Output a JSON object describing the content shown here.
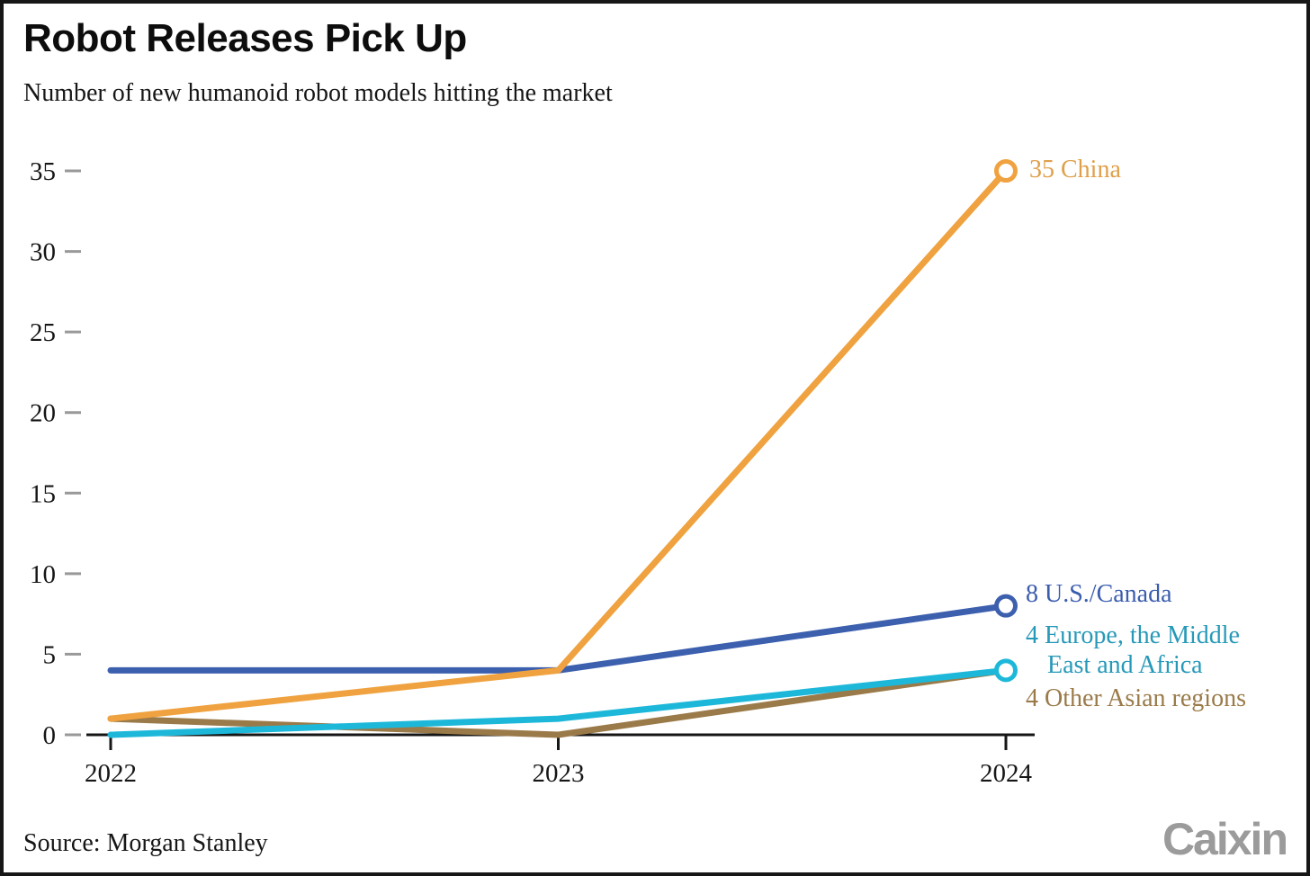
{
  "chart_data": {
    "type": "line",
    "title": "Robot Releases Pick Up",
    "subtitle": "Number of new humanoid robot models hitting the market",
    "source": "Source: Morgan Stanley",
    "logo": "Caixin",
    "x": [
      "2022",
      "2023",
      "2024"
    ],
    "xlabel": "",
    "ylabel": "",
    "ylim": [
      0,
      35
    ],
    "yticks": [
      0,
      5,
      10,
      15,
      20,
      25,
      30,
      35
    ],
    "grid": false,
    "legend_position": "end-of-line annotations, right side",
    "axis_color": "#161616",
    "tick_dash_color": "#999999",
    "series": [
      {
        "name": "China",
        "values": [
          1,
          4,
          35
        ],
        "color": "#efa23f",
        "label_color": "#dfa04a",
        "end_marker": true,
        "end_label_lines": [
          "35 China"
        ]
      },
      {
        "name": "U.S./Canada",
        "values": [
          4,
          4,
          8
        ],
        "color": "#3c5fae",
        "label_color": "#3b5dae",
        "end_marker": true,
        "end_label_lines": [
          "8 U.S./Canada"
        ]
      },
      {
        "name": "Europe, the Middle East and Africa",
        "values": [
          0,
          1,
          4
        ],
        "color": "#1db8d9",
        "label_color": "#2699b8",
        "end_marker": true,
        "end_label_lines": [
          "4 Europe, the Middle",
          "East and Africa"
        ]
      },
      {
        "name": "Other Asian regions",
        "values": [
          1,
          0,
          4
        ],
        "color": "#9a7a49",
        "label_color": "#9a7a49",
        "end_marker": false,
        "end_label_lines": [
          "4 Other Asian regions"
        ]
      }
    ]
  }
}
